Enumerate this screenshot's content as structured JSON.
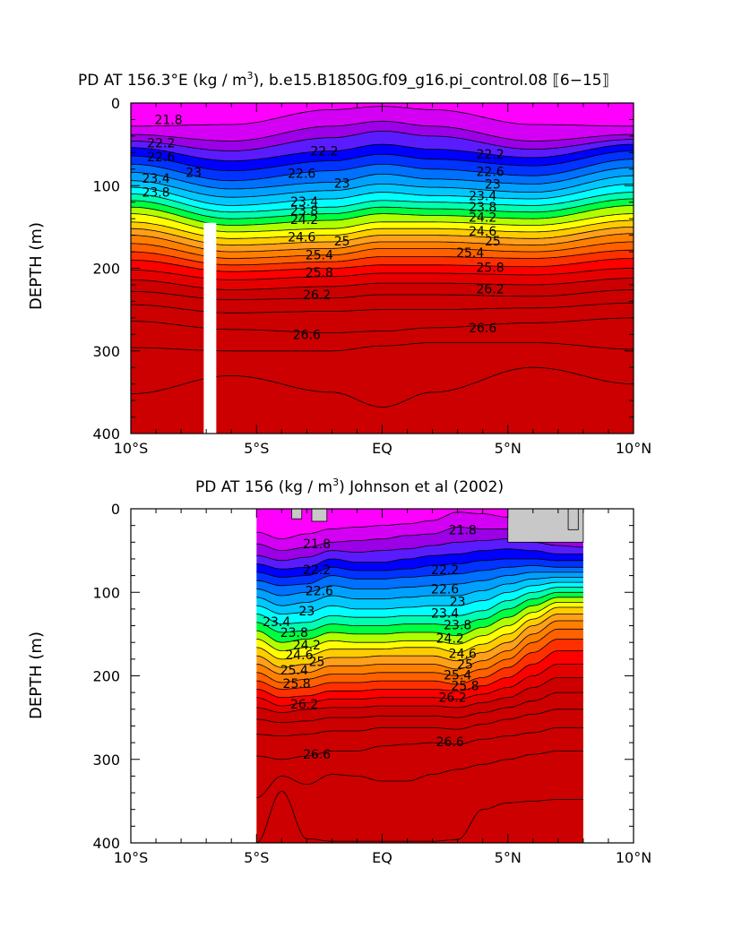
{
  "palette": [
    "#ff00ff",
    "#d400f4",
    "#9b00e6",
    "#5a1cff",
    "#0000ff",
    "#0033ff",
    "#0070ff",
    "#00a0ff",
    "#00c8ff",
    "#00ffff",
    "#00ffb0",
    "#00ff40",
    "#b0ff00",
    "#ffff00",
    "#ffcc00",
    "#ff9f1a",
    "#ff8000",
    "#ff6000",
    "#ff3000",
    "#ff0000",
    "#e50000",
    "#cc0000"
  ],
  "chart_data": [
    {
      "type": "contour",
      "title": "PD AT 156.3°E (kg / m³), b.e15.B1850G.f09_g16.pi_control.08 [6−15]",
      "title_main": "PD AT 156.3°E (kg / m",
      "title_sup": "3",
      "title_tail": "), b.e15.B1850G.f09_g16.pi_control.08 ⟦6−15⟧",
      "xlabel": "",
      "ylabel": "DEPTH (m)",
      "xlim": [
        -10,
        10
      ],
      "ylim": [
        400,
        0
      ],
      "x_tick_labels": [
        "10°S",
        "5°S",
        "EQ",
        "5°N",
        "10°N"
      ],
      "y_tick_labels": [
        "0",
        "100",
        "200",
        "300",
        "400"
      ],
      "data_extent_x": [
        -10,
        10
      ],
      "gap": {
        "x": [
          -7.1,
          -6.6
        ],
        "depth": [
          145,
          400
        ]
      },
      "isopycnal_levels": [
        21.8,
        22.0,
        22.2,
        22.4,
        22.6,
        22.8,
        23.0,
        23.2,
        23.4,
        23.6,
        23.8,
        24.0,
        24.2,
        24.4,
        24.6,
        24.8,
        25.0,
        25.2,
        25.4,
        25.6,
        25.8,
        26.0,
        26.2,
        26.4,
        26.6,
        26.8
      ],
      "isopycnal_depth_m": {
        "x": [
          -10,
          -6,
          -2,
          0,
          2,
          6,
          10
        ],
        "depths": [
          [
            28,
            26,
            8,
            4,
            8,
            26,
            28
          ],
          [
            38,
            46,
            28,
            22,
            28,
            46,
            38
          ],
          [
            46,
            58,
            42,
            34,
            40,
            56,
            44
          ],
          [
            54,
            70,
            58,
            50,
            56,
            66,
            50
          ],
          [
            64,
            82,
            70,
            62,
            68,
            76,
            58
          ],
          [
            74,
            94,
            82,
            74,
            80,
            88,
            68
          ],
          [
            84,
            104,
            96,
            86,
            92,
            98,
            78
          ],
          [
            94,
            114,
            106,
            98,
            102,
            108,
            88
          ],
          [
            102,
            124,
            116,
            108,
            112,
            116,
            98
          ],
          [
            110,
            132,
            126,
            118,
            120,
            124,
            108
          ],
          [
            118,
            140,
            134,
            126,
            128,
            132,
            116
          ],
          [
            126,
            148,
            142,
            134,
            136,
            140,
            124
          ],
          [
            134,
            156,
            152,
            144,
            144,
            148,
            134
          ],
          [
            144,
            164,
            160,
            152,
            152,
            156,
            142
          ],
          [
            152,
            172,
            168,
            160,
            160,
            164,
            150
          ],
          [
            160,
            180,
            176,
            168,
            168,
            172,
            158
          ],
          [
            170,
            188,
            184,
            176,
            176,
            180,
            168
          ],
          [
            180,
            196,
            192,
            186,
            186,
            188,
            178
          ],
          [
            190,
            204,
            200,
            196,
            196,
            198,
            188
          ],
          [
            202,
            214,
            210,
            206,
            206,
            208,
            200
          ],
          [
            214,
            226,
            222,
            218,
            218,
            220,
            212
          ],
          [
            228,
            238,
            236,
            232,
            232,
            234,
            226
          ],
          [
            244,
            254,
            252,
            250,
            250,
            248,
            242
          ],
          [
            264,
            274,
            278,
            276,
            272,
            266,
            260
          ],
          [
            296,
            300,
            300,
            294,
            290,
            290,
            298
          ],
          [
            352,
            330,
            350,
            368,
            350,
            320,
            340
          ]
        ]
      },
      "contour_labels": [
        {
          "text": "21.8",
          "x": -8.5,
          "depth": 20
        },
        {
          "text": "22.2",
          "x": -8.8,
          "depth": 48
        },
        {
          "text": "22.2",
          "x": -2.3,
          "depth": 58
        },
        {
          "text": "22.2",
          "x": 4.3,
          "depth": 62
        },
        {
          "text": "22.6",
          "x": -8.8,
          "depth": 65
        },
        {
          "text": "22.6",
          "x": -3.2,
          "depth": 85
        },
        {
          "text": "22.6",
          "x": 4.3,
          "depth": 83
        },
        {
          "text": "23",
          "x": -7.5,
          "depth": 84
        },
        {
          "text": "23",
          "x": -1.6,
          "depth": 97
        },
        {
          "text": "23",
          "x": 4.4,
          "depth": 98
        },
        {
          "text": "23.4",
          "x": -9.0,
          "depth": 91
        },
        {
          "text": "23.4",
          "x": -3.1,
          "depth": 119
        },
        {
          "text": "23.4",
          "x": 4.0,
          "depth": 112
        },
        {
          "text": "23.8",
          "x": -9.0,
          "depth": 108
        },
        {
          "text": "23.8",
          "x": -3.1,
          "depth": 130
        },
        {
          "text": "23.8",
          "x": 4.0,
          "depth": 126
        },
        {
          "text": "24.2",
          "x": -3.1,
          "depth": 141
        },
        {
          "text": "24.2",
          "x": 4.0,
          "depth": 138
        },
        {
          "text": "24.6",
          "x": -3.2,
          "depth": 162
        },
        {
          "text": "24.6",
          "x": 4.0,
          "depth": 155
        },
        {
          "text": "25",
          "x": -1.6,
          "depth": 167
        },
        {
          "text": "25",
          "x": 4.4,
          "depth": 167
        },
        {
          "text": "25.4",
          "x": -2.5,
          "depth": 184
        },
        {
          "text": "25.4",
          "x": 3.5,
          "depth": 181
        },
        {
          "text": "25.8",
          "x": -2.5,
          "depth": 205
        },
        {
          "text": "25.8",
          "x": 4.3,
          "depth": 199
        },
        {
          "text": "26.2",
          "x": -2.6,
          "depth": 232
        },
        {
          "text": "26.2",
          "x": 4.3,
          "depth": 225
        },
        {
          "text": "26.6",
          "x": -3.0,
          "depth": 280
        },
        {
          "text": "26.6",
          "x": 4.0,
          "depth": 272
        }
      ]
    },
    {
      "type": "contour",
      "title": "PD AT 156 (kg / m³) Johnson et al (2002)",
      "title_main": "PD AT 156 (kg / m",
      "title_sup": "3",
      "title_tail": ") Johnson et al (2002)",
      "xlabel": "",
      "ylabel": "DEPTH (m)",
      "xlim": [
        -10,
        10
      ],
      "ylim": [
        400,
        0
      ],
      "x_tick_labels": [
        "10°S",
        "5°S",
        "EQ",
        "5°N",
        "10°N"
      ],
      "y_tick_labels": [
        "0",
        "100",
        "200",
        "300",
        "400"
      ],
      "data_extent_x": [
        -5,
        8
      ],
      "isopycnal_levels": [
        21.8,
        22.0,
        22.2,
        22.4,
        22.6,
        22.8,
        23.0,
        23.2,
        23.4,
        23.6,
        23.8,
        24.0,
        24.2,
        24.4,
        24.6,
        24.8,
        25.0,
        25.2,
        25.4,
        25.6,
        25.8,
        26.0,
        26.2,
        26.4,
        26.6,
        26.8
      ],
      "isopycnal_depth_m": {
        "x": [
          -5,
          -4,
          -3,
          -2,
          -1,
          0,
          1,
          2,
          3,
          4,
          5,
          6,
          7,
          8
        ],
        "depths": [
          [
            28,
            36,
            30,
            24,
            22,
            20,
            18,
            14,
            4,
            6,
            10,
            16,
            28,
            30
          ],
          [
            42,
            50,
            46,
            40,
            38,
            36,
            32,
            30,
            22,
            24,
            24,
            28,
            36,
            38
          ],
          [
            56,
            62,
            58,
            50,
            52,
            50,
            48,
            44,
            40,
            38,
            36,
            40,
            44,
            46
          ],
          [
            66,
            72,
            70,
            60,
            64,
            64,
            60,
            56,
            54,
            50,
            48,
            50,
            54,
            54
          ],
          [
            76,
            82,
            80,
            70,
            74,
            74,
            72,
            68,
            66,
            62,
            60,
            60,
            62,
            62
          ],
          [
            86,
            92,
            90,
            80,
            84,
            84,
            82,
            80,
            78,
            74,
            70,
            68,
            70,
            70
          ],
          [
            96,
            104,
            100,
            92,
            96,
            96,
            94,
            92,
            90,
            86,
            80,
            76,
            76,
            76
          ],
          [
            106,
            116,
            112,
            104,
            108,
            108,
            106,
            104,
            104,
            98,
            90,
            84,
            82,
            82
          ],
          [
            116,
            126,
            124,
            116,
            120,
            120,
            118,
            116,
            116,
            110,
            100,
            92,
            88,
            88
          ],
          [
            126,
            138,
            136,
            128,
            130,
            130,
            128,
            128,
            128,
            122,
            110,
            100,
            94,
            94
          ],
          [
            136,
            148,
            146,
            138,
            140,
            140,
            138,
            138,
            140,
            132,
            120,
            108,
            100,
            100
          ],
          [
            146,
            160,
            156,
            148,
            150,
            150,
            148,
            148,
            152,
            142,
            130,
            116,
            106,
            106
          ],
          [
            156,
            170,
            166,
            158,
            160,
            160,
            158,
            158,
            162,
            152,
            140,
            124,
            112,
            112
          ],
          [
            166,
            180,
            176,
            168,
            168,
            168,
            166,
            166,
            172,
            162,
            150,
            132,
            118,
            118
          ],
          [
            176,
            190,
            186,
            178,
            178,
            176,
            176,
            176,
            182,
            172,
            160,
            140,
            126,
            126
          ],
          [
            186,
            198,
            196,
            188,
            188,
            186,
            186,
            186,
            192,
            182,
            170,
            150,
            134,
            134
          ],
          [
            196,
            208,
            204,
            198,
            198,
            196,
            196,
            196,
            200,
            192,
            180,
            160,
            144,
            144
          ],
          [
            206,
            216,
            214,
            208,
            208,
            206,
            206,
            206,
            210,
            202,
            190,
            172,
            156,
            156
          ],
          [
            216,
            226,
            224,
            218,
            218,
            216,
            216,
            216,
            218,
            212,
            202,
            186,
            170,
            170
          ],
          [
            226,
            236,
            232,
            228,
            228,
            226,
            226,
            226,
            228,
            222,
            214,
            200,
            186,
            186
          ],
          [
            238,
            244,
            240,
            238,
            238,
            236,
            236,
            236,
            238,
            232,
            226,
            214,
            202,
            202
          ],
          [
            252,
            256,
            254,
            250,
            250,
            248,
            248,
            248,
            250,
            244,
            238,
            230,
            220,
            220
          ],
          [
            270,
            272,
            270,
            266,
            266,
            262,
            262,
            262,
            264,
            258,
            252,
            246,
            240,
            240
          ],
          [
            296,
            300,
            296,
            290,
            290,
            284,
            282,
            280,
            282,
            276,
            272,
            268,
            262,
            262
          ],
          [
            346,
            320,
            330,
            318,
            320,
            326,
            326,
            318,
            312,
            306,
            300,
            294,
            290,
            290
          ],
          [
            400,
            338,
            395,
            398,
            398,
            398,
            398,
            398,
            396,
            360,
            352,
            350,
            348,
            348
          ]
        ]
      },
      "missing_patches": [
        {
          "x": [
            -3.6,
            -3.2
          ],
          "depth": [
            0,
            12
          ]
        },
        {
          "x": [
            -2.8,
            -2.2
          ],
          "depth": [
            0,
            15
          ]
        },
        {
          "x": [
            5.0,
            8.0
          ],
          "depth": [
            0,
            40
          ]
        },
        {
          "x": [
            7.4,
            7.8
          ],
          "depth": [
            0,
            25
          ]
        }
      ],
      "contour_labels": [
        {
          "text": "21.8",
          "x": -2.6,
          "depth": 42
        },
        {
          "text": "21.8",
          "x": 3.2,
          "depth": 25
        },
        {
          "text": "22.2",
          "x": -2.6,
          "depth": 73
        },
        {
          "text": "22.2",
          "x": 2.5,
          "depth": 73
        },
        {
          "text": "22.6",
          "x": -2.5,
          "depth": 98
        },
        {
          "text": "22.6",
          "x": 2.5,
          "depth": 96
        },
        {
          "text": "23",
          "x": -3.0,
          "depth": 122
        },
        {
          "text": "23",
          "x": 3.0,
          "depth": 111
        },
        {
          "text": "23.4",
          "x": -4.2,
          "depth": 135
        },
        {
          "text": "23.4",
          "x": 2.5,
          "depth": 125
        },
        {
          "text": "23.8",
          "x": -3.5,
          "depth": 148
        },
        {
          "text": "23.8",
          "x": 3.0,
          "depth": 139
        },
        {
          "text": "24.2",
          "x": -3.0,
          "depth": 163
        },
        {
          "text": "24.2",
          "x": 2.7,
          "depth": 155
        },
        {
          "text": "24.6",
          "x": -3.3,
          "depth": 175
        },
        {
          "text": "24.6",
          "x": 3.2,
          "depth": 173
        },
        {
          "text": "25",
          "x": -2.6,
          "depth": 183
        },
        {
          "text": "25",
          "x": 3.3,
          "depth": 186
        },
        {
          "text": "25.4",
          "x": -3.5,
          "depth": 193
        },
        {
          "text": "25.4",
          "x": 3.0,
          "depth": 199
        },
        {
          "text": "25.8",
          "x": -3.4,
          "depth": 209
        },
        {
          "text": "25.8",
          "x": 3.3,
          "depth": 212
        },
        {
          "text": "26.2",
          "x": -3.1,
          "depth": 234
        },
        {
          "text": "26.2",
          "x": 2.8,
          "depth": 226
        },
        {
          "text": "26.6",
          "x": -2.6,
          "depth": 294
        },
        {
          "text": "26.6",
          "x": 2.7,
          "depth": 279
        }
      ]
    }
  ]
}
